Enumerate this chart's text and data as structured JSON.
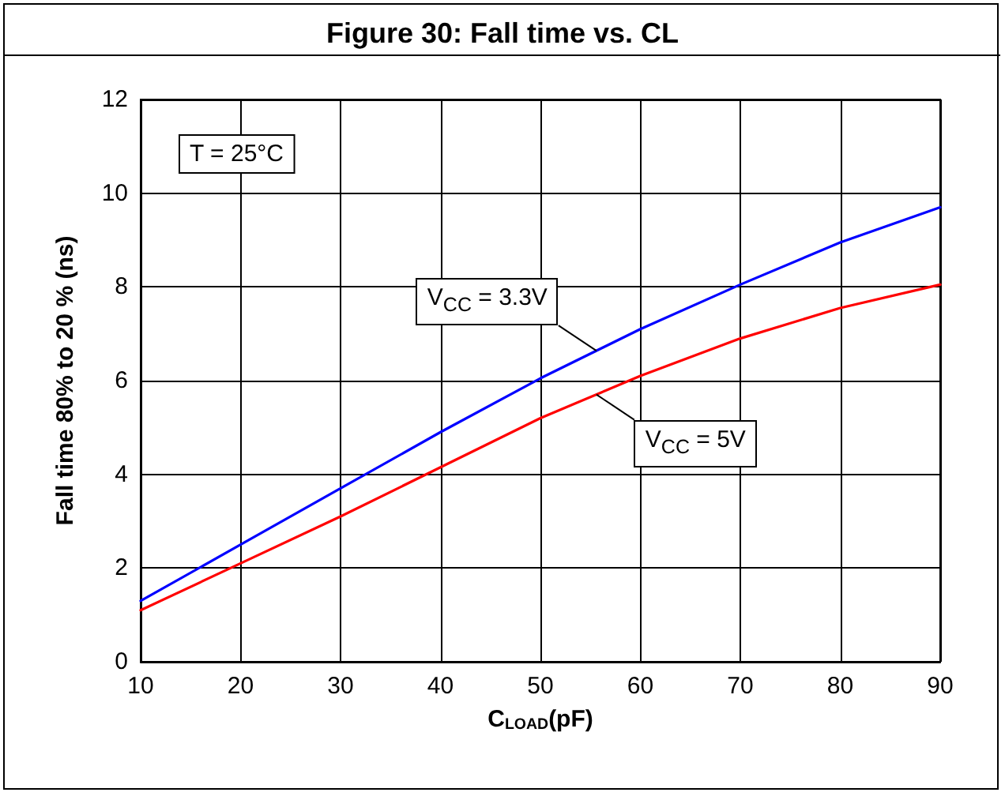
{
  "chart_data": {
    "type": "line",
    "title": "Figure 30: Fall time vs. CL",
    "xlabel": "C$_{LOAD}$(pF)",
    "ylabel": "Fall time 80% to 20 % (ns)",
    "x": [
      10,
      20,
      30,
      40,
      50,
      60,
      70,
      80,
      90
    ],
    "series": [
      {
        "name": "V$_{CC}$ = 3.3V",
        "color": "#0000ff",
        "values": [
          1.3,
          2.5,
          3.7,
          4.9,
          6.05,
          7.1,
          8.05,
          8.95,
          9.7
        ]
      },
      {
        "name": "V$_{CC}$ = 5V",
        "color": "#ff0000",
        "values": [
          1.1,
          2.1,
          3.1,
          4.15,
          5.2,
          6.1,
          6.9,
          7.55,
          8.05
        ]
      }
    ],
    "annotations": [
      "T = 25°C"
    ],
    "xlim": [
      10,
      90
    ],
    "xticks": [
      10,
      20,
      30,
      40,
      50,
      60,
      70,
      80,
      90
    ],
    "ylim": [
      0,
      12
    ],
    "yticks": [
      0,
      2,
      4,
      6,
      8,
      10,
      12
    ],
    "grid": true,
    "legend": false,
    "marker": "none",
    "line_style": "solid"
  }
}
